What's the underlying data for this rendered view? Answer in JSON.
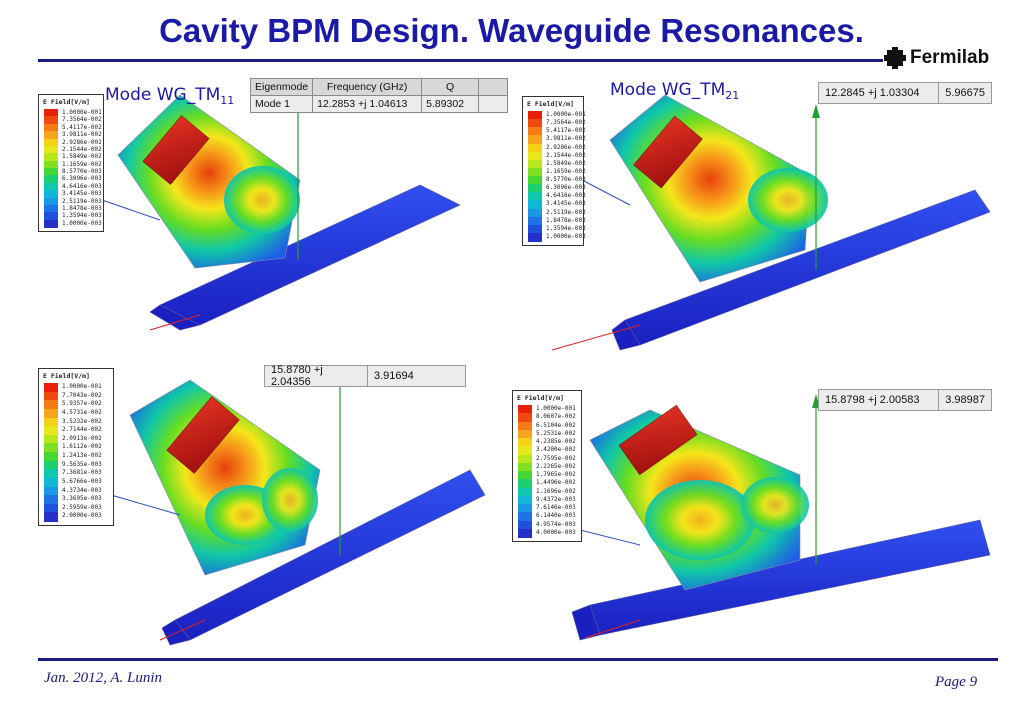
{
  "slide": {
    "title": "Cavity BPM Design. Waveguide Resonances.",
    "logo_text": "Fermilab",
    "footer_left": "Jan. 2012,   A. Lunin",
    "footer_right": "Page  9"
  },
  "colors": {
    "title": "#1a1aa6",
    "rule": "#1a1a80"
  },
  "modes": [
    {
      "label": "Mode WG_TM",
      "sub": "11"
    },
    {
      "label": "Mode WG_TM",
      "sub": "21"
    }
  ],
  "table": {
    "headers": [
      "Eigenmode",
      "Frequency (GHz)",
      "Q"
    ],
    "row": [
      "Mode 1",
      "12.2853 +j  1.04613",
      "5.89302"
    ]
  },
  "values": [
    {
      "freq": "12.2845 +j  1.03304",
      "q": "5.96675"
    },
    {
      "freq": "15.8780 +j  2.04356",
      "q": "3.91694"
    },
    {
      "freq": "15.8798 +j  2.00583",
      "q": "3.98987"
    }
  ],
  "legend_title": "E Field[V/m]",
  "legends": [
    [
      "1.0000e-001",
      "7.3564e-002",
      "5.4117e-002",
      "3.9811e-002",
      "2.9286e-002",
      "2.1544e-002",
      "1.5849e-002",
      "1.1659e-002",
      "8.5770e-003",
      "6.3096e-003",
      "4.6416e-003",
      "3.4145e-003",
      "2.5119e-003",
      "1.8478e-003",
      "1.3594e-003",
      "1.0000e-003"
    ],
    [
      "1.0000e-001",
      "7.3564e-002",
      "5.4117e-002",
      "3.9811e-002",
      "2.9286e-002",
      "2.1544e-002",
      "1.5849e-002",
      "1.1659e-002",
      "8.5770e-003",
      "6.3096e-003",
      "4.6416e-003",
      "3.4145e-003",
      "2.5119e-003",
      "1.8478e-003",
      "1.3594e-003",
      "1.0000e-003"
    ],
    [
      "1.0000e-001",
      "7.7043e-002",
      "5.9357e-002",
      "4.5731e-002",
      "3.5232e-002",
      "2.7144e-002",
      "2.0913e-002",
      "1.6112e-002",
      "1.2413e-002",
      "9.5635e-003",
      "7.3681e-003",
      "5.6766e-003",
      "4.3734e-003",
      "3.3695e-003",
      "2.5959e-003",
      "2.0000e-003"
    ],
    [
      "1.0000e-001",
      "8.0607e-002",
      "6.5104e-002",
      "5.2531e-002",
      "4.2385e-002",
      "3.4200e-002",
      "2.7595e-002",
      "2.2265e-002",
      "1.7965e-002",
      "1.4496e-002",
      "1.1696e-002",
      "9.4372e-003",
      "7.6146e-003",
      "6.1440e-003",
      "4.9574e-003",
      "4.0000e-003"
    ]
  ]
}
